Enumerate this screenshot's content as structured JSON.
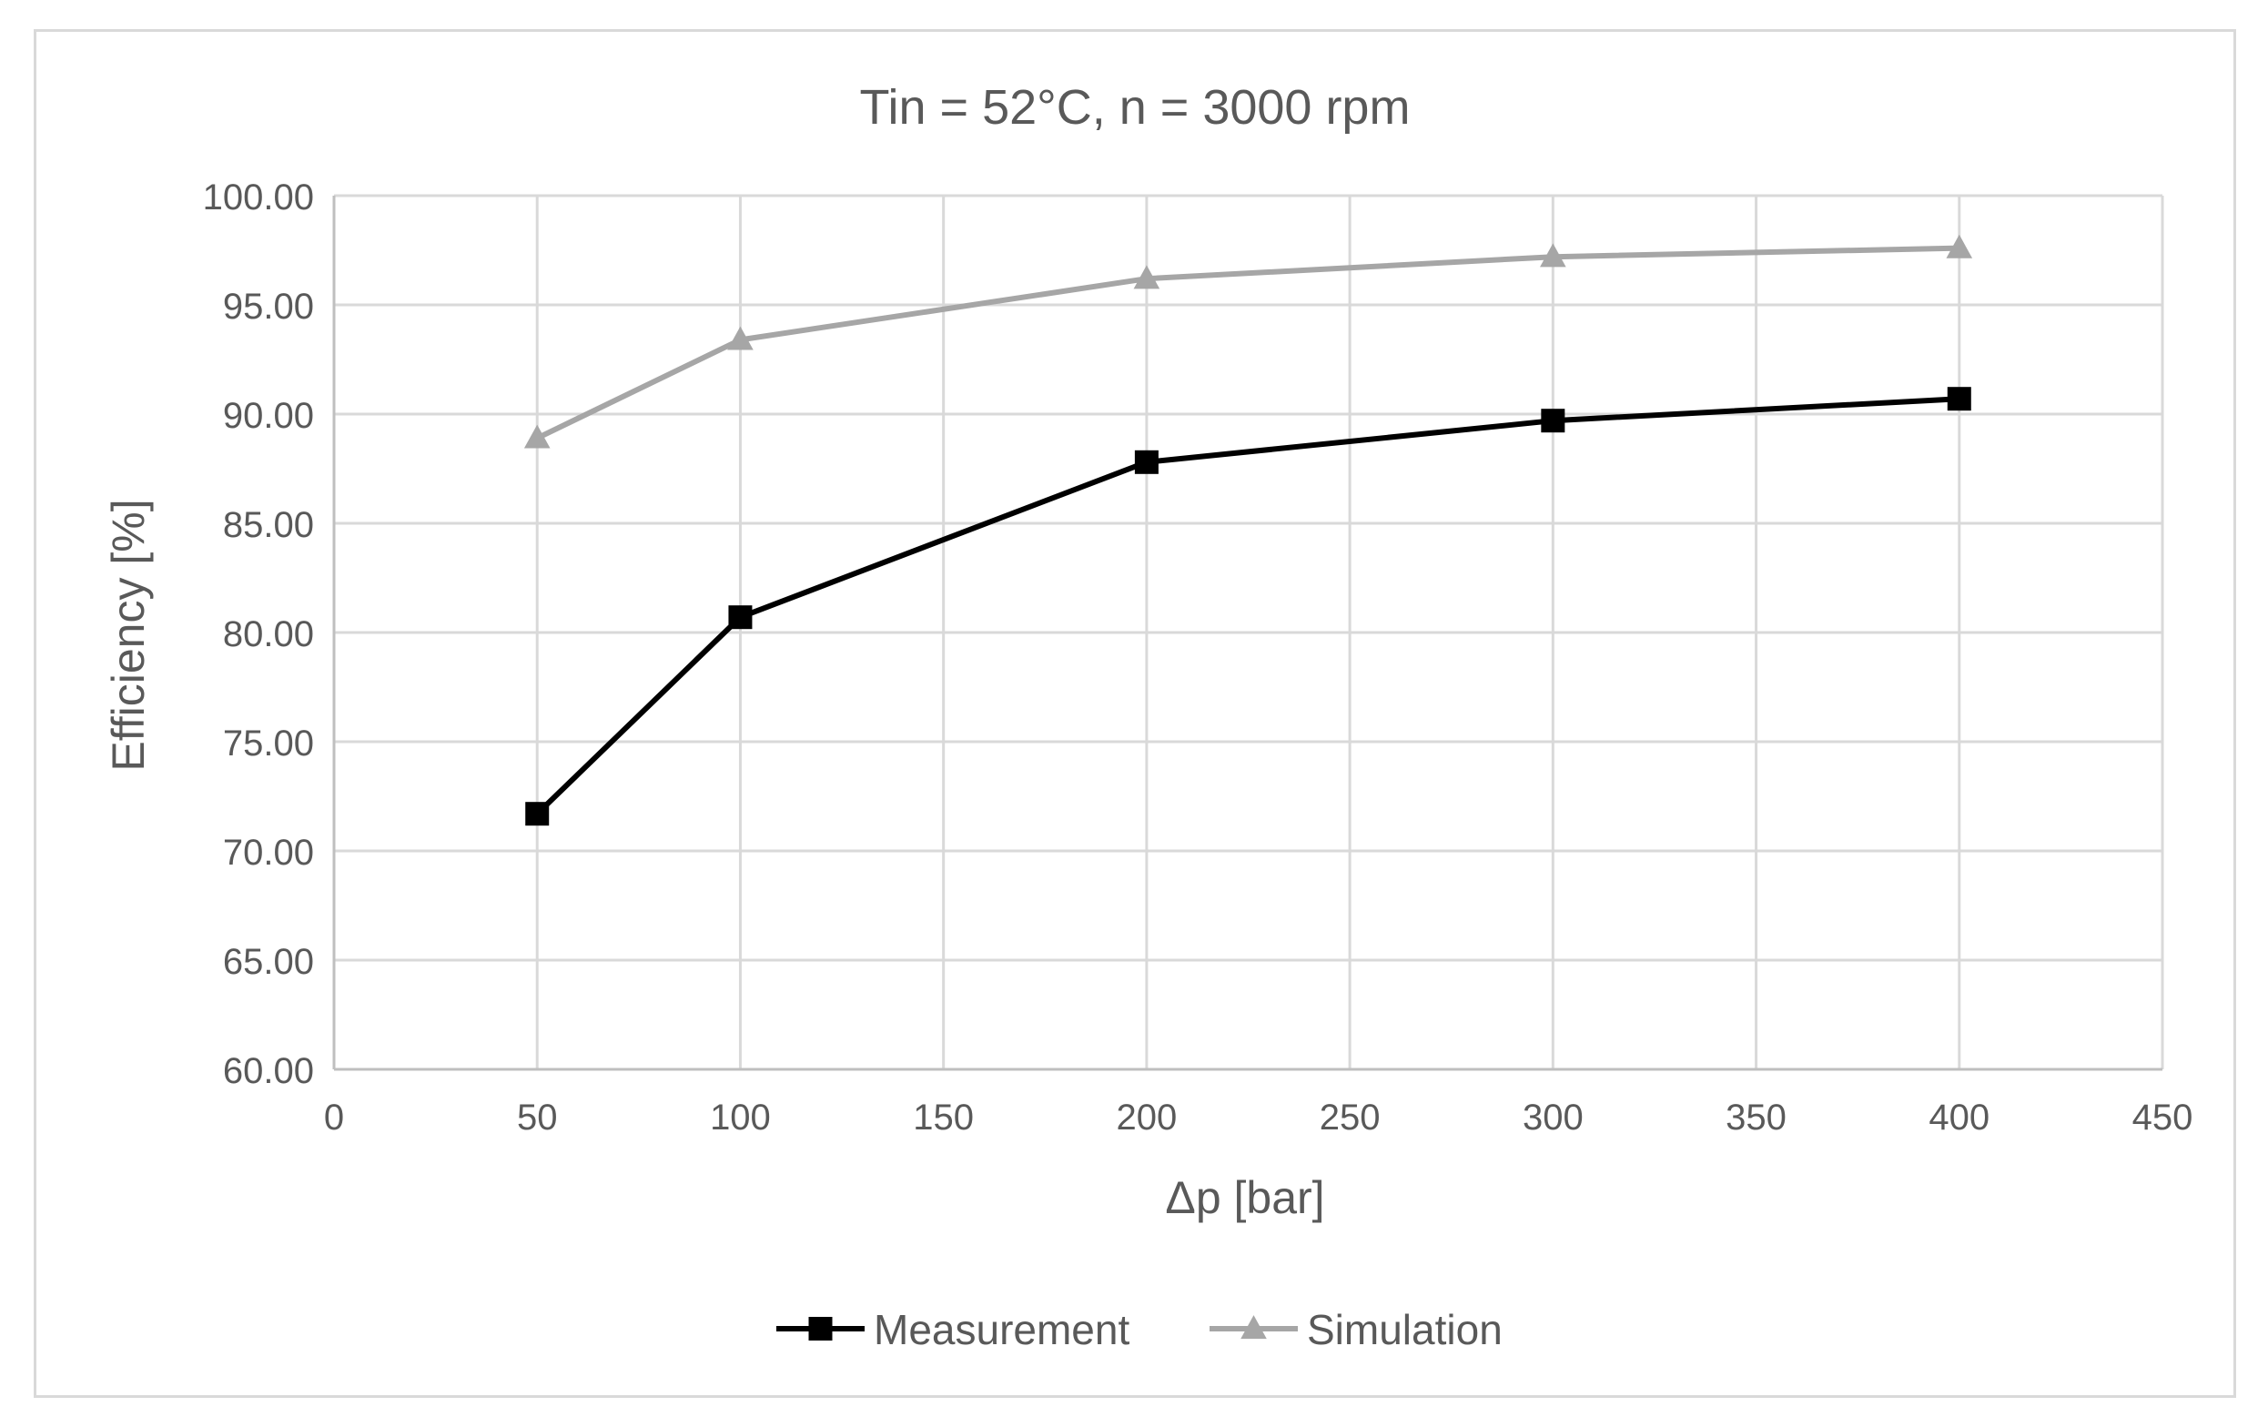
{
  "chart_data": {
    "type": "line",
    "title": "Tin = 52°C, n = 3000 rpm",
    "xlabel": "Δp [bar]",
    "ylabel": "Efficiency [%]",
    "xlim": [
      0,
      450
    ],
    "ylim": [
      60,
      100
    ],
    "x_ticks": [
      0,
      50,
      100,
      150,
      200,
      250,
      300,
      350,
      400,
      450
    ],
    "y_ticks": [
      60,
      65,
      70,
      75,
      80,
      85,
      90,
      95,
      100
    ],
    "x_tick_labels": [
      "0",
      "50",
      "100",
      "150",
      "200",
      "250",
      "300",
      "350",
      "400",
      "450"
    ],
    "y_tick_labels": [
      "60.00",
      "65.00",
      "70.00",
      "75.00",
      "80.00",
      "85.00",
      "90.00",
      "95.00",
      "100.00"
    ],
    "grid": true,
    "legend_position": "bottom",
    "x": [
      50,
      100,
      200,
      300,
      400
    ],
    "series": [
      {
        "name": "Measurement",
        "marker": "square",
        "color": "#000000",
        "values": [
          71.7,
          80.7,
          87.8,
          89.7,
          90.7
        ]
      },
      {
        "name": "Simulation",
        "marker": "triangle",
        "color": "#a6a6a6",
        "values": [
          88.9,
          93.4,
          96.2,
          97.2,
          97.6
        ]
      }
    ]
  },
  "colors": {
    "grid": "#d9d9d9",
    "text": "#595959",
    "frame": "#d9d9d9"
  }
}
